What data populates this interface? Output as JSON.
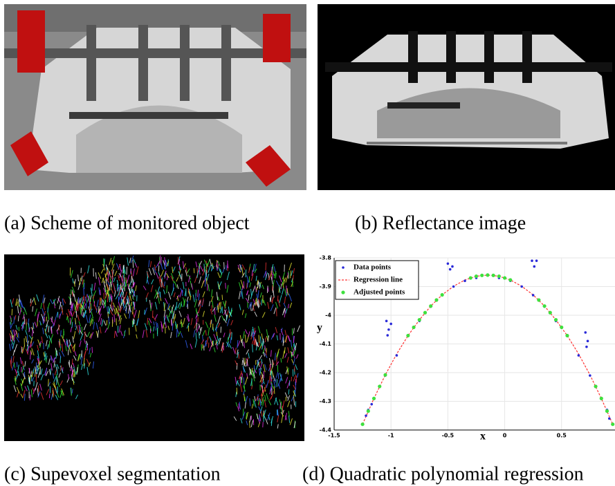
{
  "captions": [
    "(a) Scheme of monitored object",
    "(b) Reflectance image",
    "(c) Supevoxel segmentation",
    "(d) Quadratic polynomial regression"
  ],
  "chart_data": {
    "type": "scatter",
    "xlabel": "x",
    "ylabel": "y",
    "xlim": [
      -1.5,
      0.97
    ],
    "ylim": [
      -4.4,
      -3.8
    ],
    "xticks": [
      -1.5,
      -1,
      -0.5,
      0,
      0.5
    ],
    "yticks": [
      -4.4,
      -4.3,
      -4.2,
      -4.1,
      -4,
      -3.9,
      -3.8
    ],
    "grid": true,
    "legend": "upper left",
    "series": [
      {
        "name": "Data points",
        "color": "#2a2ad8",
        "style": "markers",
        "x": [
          -1.25,
          -1.22,
          -1.2,
          -1.17,
          -1.15,
          -1.1,
          -1.05,
          -0.95,
          -0.85,
          -0.75,
          -0.65,
          -0.55,
          -0.45,
          -0.35,
          -0.25,
          -0.15,
          -0.05,
          0.05,
          0.15,
          0.25,
          0.35,
          0.45,
          0.55,
          0.65,
          0.75,
          0.8,
          0.85,
          0.9,
          0.92,
          0.95,
          -1.04,
          -1.02,
          -1.0,
          -1.03,
          -0.5,
          -0.48,
          -0.46,
          0.24,
          0.26,
          0.28,
          0.71,
          0.73,
          0.72
        ],
        "values": [
          -4.38,
          -4.35,
          -4.33,
          -4.31,
          -4.29,
          -4.25,
          -4.21,
          -4.14,
          -4.07,
          -4.02,
          -3.97,
          -3.93,
          -3.9,
          -3.88,
          -3.87,
          -3.86,
          -3.87,
          -3.88,
          -3.9,
          -3.93,
          -3.97,
          -4.02,
          -4.07,
          -4.14,
          -4.21,
          -4.25,
          -4.29,
          -4.33,
          -4.36,
          -4.38,
          -4.02,
          -4.05,
          -4.03,
          -4.07,
          -3.82,
          -3.84,
          -3.83,
          -3.81,
          -3.83,
          -3.81,
          -4.06,
          -4.09,
          -4.11
        ]
      },
      {
        "name": "Regression line",
        "color": "#ff3030",
        "style": "dashed-line",
        "x": [
          -1.25,
          -1.15,
          -1.05,
          -0.95,
          -0.85,
          -0.75,
          -0.65,
          -0.55,
          -0.45,
          -0.35,
          -0.25,
          -0.15,
          -0.05,
          0.05,
          0.15,
          0.25,
          0.35,
          0.45,
          0.55,
          0.65,
          0.75,
          0.85,
          0.95
        ],
        "values": [
          -4.38,
          -4.29,
          -4.208,
          -4.135,
          -4.071,
          -4.016,
          -3.968,
          -3.929,
          -3.899,
          -3.877,
          -3.864,
          -3.86,
          -3.864,
          -3.877,
          -3.899,
          -3.929,
          -3.968,
          -4.016,
          -4.071,
          -4.135,
          -4.208,
          -4.29,
          -4.38
        ]
      },
      {
        "name": "Adjusted points",
        "color": "#3ee03e",
        "style": "markers",
        "x": [
          -1.25,
          -1.2,
          -1.15,
          -1.1,
          -1.05,
          -0.85,
          -0.8,
          -0.75,
          -0.7,
          -0.65,
          -0.6,
          -0.55,
          -0.3,
          -0.25,
          -0.2,
          -0.15,
          -0.1,
          -0.05,
          0.0,
          0.05,
          0.3,
          0.35,
          0.4,
          0.45,
          0.5,
          0.55,
          0.8,
          0.85,
          0.9,
          0.95
        ],
        "values": [
          -4.38,
          -4.334,
          -4.29,
          -4.248,
          -4.208,
          -4.071,
          -4.042,
          -4.016,
          -3.991,
          -3.968,
          -3.947,
          -3.929,
          -3.87,
          -3.864,
          -3.861,
          -3.86,
          -3.861,
          -3.864,
          -3.87,
          -3.877,
          -3.947,
          -3.968,
          -3.991,
          -4.016,
          -4.042,
          -4.071,
          -4.248,
          -4.29,
          -4.334,
          -4.38
        ]
      }
    ]
  }
}
